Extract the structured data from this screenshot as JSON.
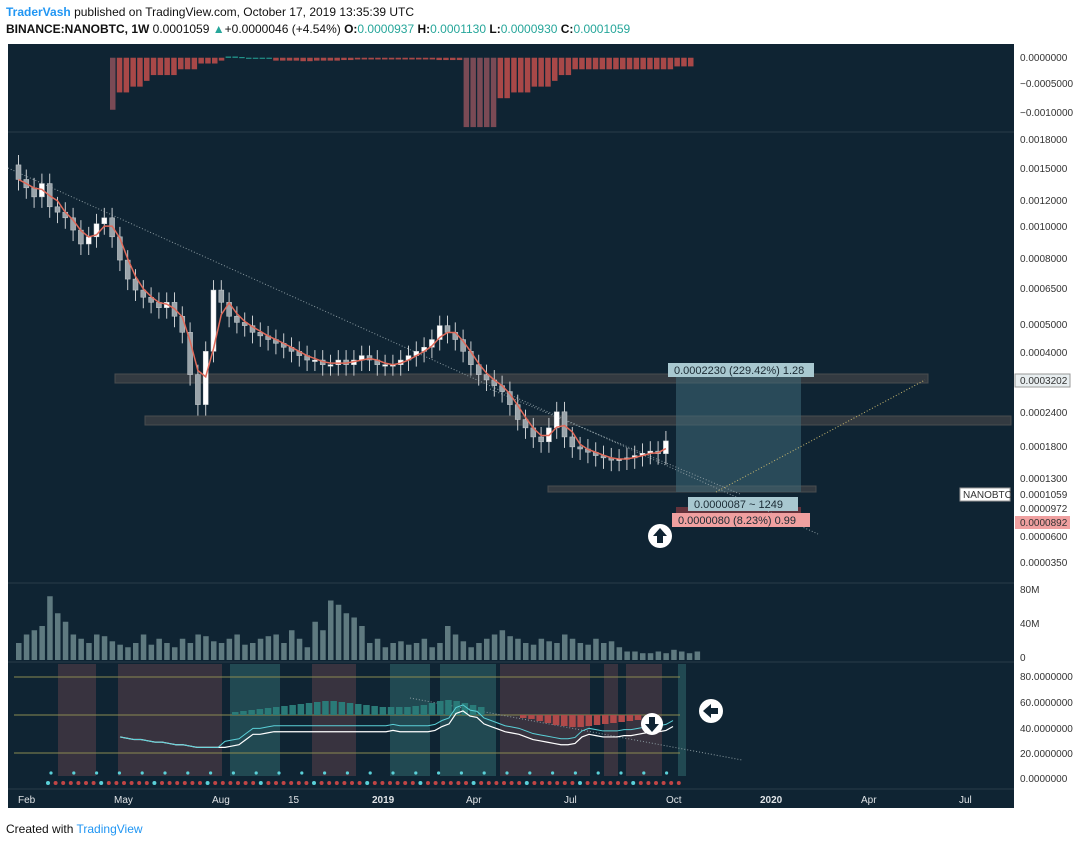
{
  "header": {
    "author": "TraderVash",
    "published": "published on TradingView.com, October 17, 2019 13:35:39 UTC",
    "symbol": "BINANCE:NANOBTC, 1W",
    "price": "0.0001059",
    "change": "+0.0000046 (+4.54%)",
    "o_label": "O:",
    "o_val": "0.0000937",
    "h_label": "H:",
    "h_val": "0.0001130",
    "l_label": "L:",
    "l_val": "0.0000930",
    "c_label": "C:",
    "c_val": "0.0001059"
  },
  "footer": {
    "created": "Created with",
    "brand": "TradingView"
  },
  "colors": {
    "background": "#0f2433",
    "up": "#ffffff",
    "down": "#b2b5be",
    "volume": "#5f7a80",
    "accent": "#26a69a",
    "red": "#c05050"
  },
  "chart_data": [
    {
      "type": "bar",
      "pane": "oscillator-top",
      "ytick_labels": [
        "0.0000000",
        "−0.0005000",
        "−0.0010000"
      ],
      "ylim": [
        -0.00125,
        3e-05
      ],
      "values": [
        -0.0009,
        -0.0006,
        -0.0006,
        -0.0005,
        -0.0005,
        -0.0004,
        -0.0003,
        -0.0003,
        -0.0003,
        -0.0003,
        -0.0002,
        -0.0002,
        -0.0002,
        -0.0001,
        -0.0001,
        -0.0001,
        -5e-05,
        2e-05,
        2e-05,
        1e-05,
        0,
        0,
        0,
        0,
        -5e-05,
        -5e-05,
        -5e-05,
        -5e-05,
        -6e-05,
        -6e-05,
        -5e-05,
        -5e-05,
        -5e-05,
        -5e-05,
        -4e-05,
        -4e-05,
        -3e-05,
        -3e-05,
        -3e-05,
        -3e-05,
        -3e-05,
        -3e-05,
        -3e-05,
        -3e-05,
        -3e-05,
        -3e-05,
        -3e-05,
        -3e-05,
        -4e-05,
        -4e-05,
        -4e-05,
        -4e-05,
        -0.0012,
        -0.0012,
        -0.0012,
        -0.0012,
        -0.0012,
        -0.0007,
        -0.0007,
        -0.0006,
        -0.0006,
        -0.0006,
        -0.0005,
        -0.0005,
        -0.0005,
        -0.0004,
        -0.0003,
        -0.0003,
        -0.0002,
        -0.0002,
        -0.0002,
        -0.0002,
        -0.0002,
        -0.0002,
        -0.0002,
        -0.0002,
        -0.0002,
        -0.0002,
        -0.0002,
        -0.0002,
        -0.0002,
        -0.0002,
        -0.0002,
        -0.00015,
        -0.00015,
        -0.00015
      ]
    },
    {
      "type": "line",
      "pane": "price",
      "series_name": "NANOBTC",
      "scale": "log",
      "ytick_labels": [
        "0.0018000",
        "0.0015000",
        "0.0012000",
        "0.0010000",
        "0.0008000",
        "0.0006500",
        "0.0005000",
        "0.0004000",
        "0.0003202",
        "0.0002400",
        "0.0001800",
        "0.0001300",
        "0.0001059",
        "0.0000972",
        "0.0000892",
        "0.0000600",
        "0.0000350"
      ],
      "ylim": [
        2.71e-05,
        0.00203
      ],
      "close": [
        0.0013,
        0.0012,
        0.0011,
        0.00125,
        0.001,
        0.00095,
        0.0009,
        0.0008,
        0.0007,
        0.00075,
        0.00085,
        0.0009,
        0.00075,
        0.0006,
        0.0005,
        0.00045,
        0.00042,
        0.0004,
        0.00038,
        0.0004,
        0.00035,
        0.0003,
        0.0002,
        0.00015,
        0.00025,
        0.00045,
        0.0004,
        0.00035,
        0.00033,
        0.00032,
        0.0003,
        0.00029,
        0.00028,
        0.00027,
        0.00026,
        0.00025,
        0.00024,
        0.00023,
        0.00023,
        0.00022,
        0.00022,
        0.00023,
        0.00022,
        0.00023,
        0.00024,
        0.00023,
        0.00022,
        0.00022,
        0.00022,
        0.00023,
        0.00024,
        0.00025,
        0.00026,
        0.00028,
        0.00032,
        0.0003,
        0.00028,
        0.00025,
        0.00022,
        0.0002,
        0.00019,
        0.00018,
        0.00017,
        0.00015,
        0.00013,
        0.00012,
        0.00011,
        0.000105,
        0.00012,
        0.00014,
        0.00011,
        0.0001,
        9.8e-05,
        9.5e-05,
        9.2e-05,
        9e-05,
        8.8e-05,
        8.9e-05,
        9e-05,
        9.2e-05,
        9.4e-05,
        9.6e-05,
        9.37e-05,
        0.0001059
      ],
      "annotations": [
        "0.0002230 (229.42%) 1.28",
        "0.0000087 ~ 1249",
        "0.0000080 (8.23%) 0.99"
      ],
      "price_labels": [
        "NANOBTC",
        "0.0001059",
        "0.0000972",
        "0.0000892",
        "0.0003202"
      ]
    },
    {
      "type": "bar",
      "pane": "volume",
      "ytick_labels": [
        "80M",
        "40M",
        "0"
      ],
      "ylim": [
        0,
        80
      ],
      "values": [
        20,
        30,
        35,
        40,
        75,
        55,
        45,
        30,
        25,
        20,
        30,
        28,
        22,
        18,
        15,
        20,
        30,
        18,
        25,
        20,
        15,
        25,
        20,
        30,
        28,
        22,
        20,
        25,
        30,
        18,
        20,
        25,
        28,
        30,
        20,
        35,
        25,
        15,
        45,
        35,
        70,
        65,
        55,
        50,
        40,
        20,
        25,
        15,
        20,
        22,
        18,
        20,
        25,
        15,
        20,
        40,
        30,
        22,
        15,
        20,
        25,
        30,
        35,
        28,
        25,
        20,
        18,
        25,
        22,
        20,
        30,
        25,
        20,
        18,
        25,
        20,
        22,
        15,
        10,
        10,
        8,
        8,
        10,
        8,
        12,
        10,
        8,
        10
      ]
    },
    {
      "type": "line",
      "pane": "oscillator-bottom",
      "ytick_labels": [
        "80.0000000",
        "60.0000000",
        "40.0000000",
        "20.0000000",
        "0.0000000"
      ],
      "ylim": [
        0,
        86
      ],
      "values": [
        30,
        29,
        28,
        28,
        27,
        26,
        26,
        25,
        24,
        24,
        23,
        22,
        22,
        22,
        22,
        22,
        23,
        24,
        28,
        32,
        32,
        33,
        34,
        34,
        34,
        34,
        34,
        34,
        34,
        34,
        34,
        34,
        34,
        34,
        34,
        34,
        34,
        34,
        34,
        35,
        34,
        34,
        34,
        34,
        34,
        35,
        38,
        40,
        48,
        50,
        46,
        45,
        40,
        38,
        36,
        34,
        33,
        32,
        30,
        28,
        27,
        26,
        25,
        24,
        24,
        25,
        30,
        32,
        31,
        30,
        30,
        30,
        31,
        31,
        32,
        33,
        34,
        34,
        35,
        38
      ]
    }
  ],
  "xaxis": {
    "ticks": [
      "Feb",
      "May",
      "Aug",
      "15",
      "2019",
      "Apr",
      "Jul",
      "Oct",
      "2020",
      "Apr",
      "Jul"
    ]
  }
}
